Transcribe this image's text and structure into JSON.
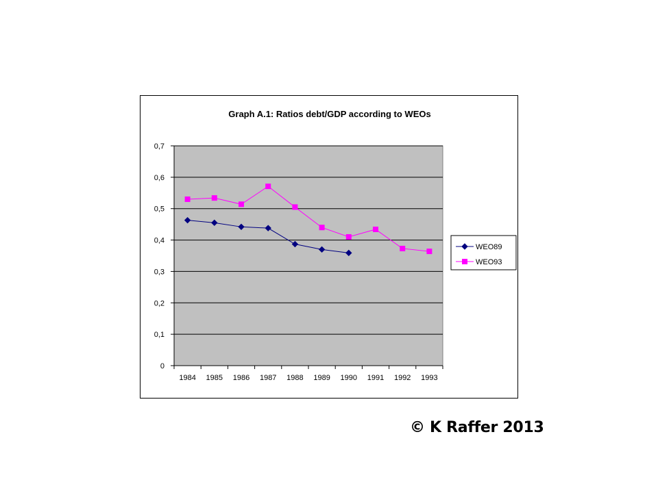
{
  "chart_data": {
    "type": "line",
    "title": "Graph A.1: Ratios debt/GDP according to WEOs",
    "xlabel": "",
    "ylabel": "",
    "categories": [
      "1984",
      "1985",
      "1986",
      "1987",
      "1988",
      "1989",
      "1990",
      "1991",
      "1992",
      "1993"
    ],
    "ylim": [
      0,
      0.7
    ],
    "y_ticks": [
      "0",
      "0,1",
      "0,2",
      "0,3",
      "0,4",
      "0,5",
      "0,6",
      "0,7"
    ],
    "grid": true,
    "legend": "right",
    "series": [
      {
        "name": "WEO89",
        "color": "#000080",
        "marker": "diamond",
        "values": [
          0.463,
          0.455,
          0.442,
          0.438,
          0.387,
          0.37,
          0.359,
          null,
          null,
          null
        ]
      },
      {
        "name": "WEO93",
        "color": "#FF00FF",
        "marker": "square",
        "values": [
          0.53,
          0.534,
          0.514,
          0.571,
          0.505,
          0.44,
          0.41,
          0.434,
          0.373,
          0.364
        ]
      }
    ],
    "plot_background": "#C0C0C0"
  },
  "footer": {
    "copyright": "© K Raffer 2013"
  }
}
